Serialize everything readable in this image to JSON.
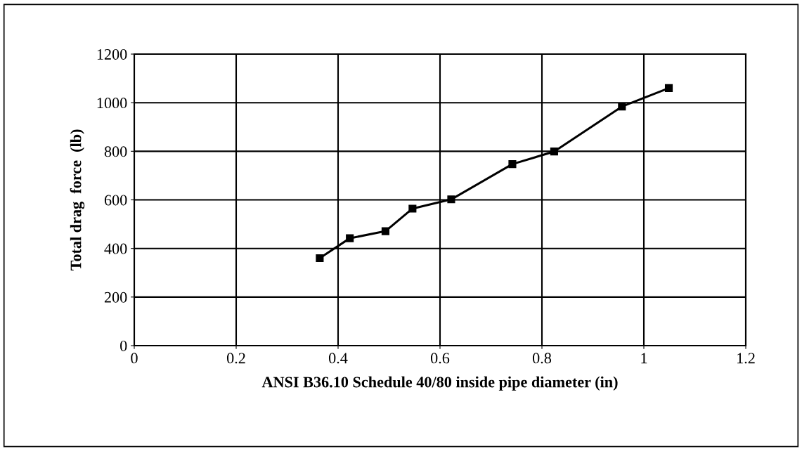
{
  "chart_data": {
    "type": "line",
    "xlabel": "ANSI B36.10 Schedule 40/80 inside pipe diameter (in)",
    "ylabel": "Total drag  force  (lb)",
    "x": [
      0.364,
      0.423,
      0.493,
      0.546,
      0.622,
      0.742,
      0.824,
      0.957,
      1.049
    ],
    "series": [
      {
        "color": "#000000",
        "values": [
          360,
          442,
          471,
          564,
          602,
          747,
          799,
          984,
          1060
        ]
      }
    ],
    "xlim": [
      0,
      1.2
    ],
    "xticks": [
      0,
      0.2,
      0.4,
      0.6,
      0.8,
      1,
      1.2
    ],
    "ylim": [
      0,
      1200
    ],
    "yticks": [
      0,
      200,
      400,
      600,
      800,
      1000,
      1200
    ],
    "grid": true,
    "marker": "square",
    "line_style": "solid",
    "legend": false
  }
}
